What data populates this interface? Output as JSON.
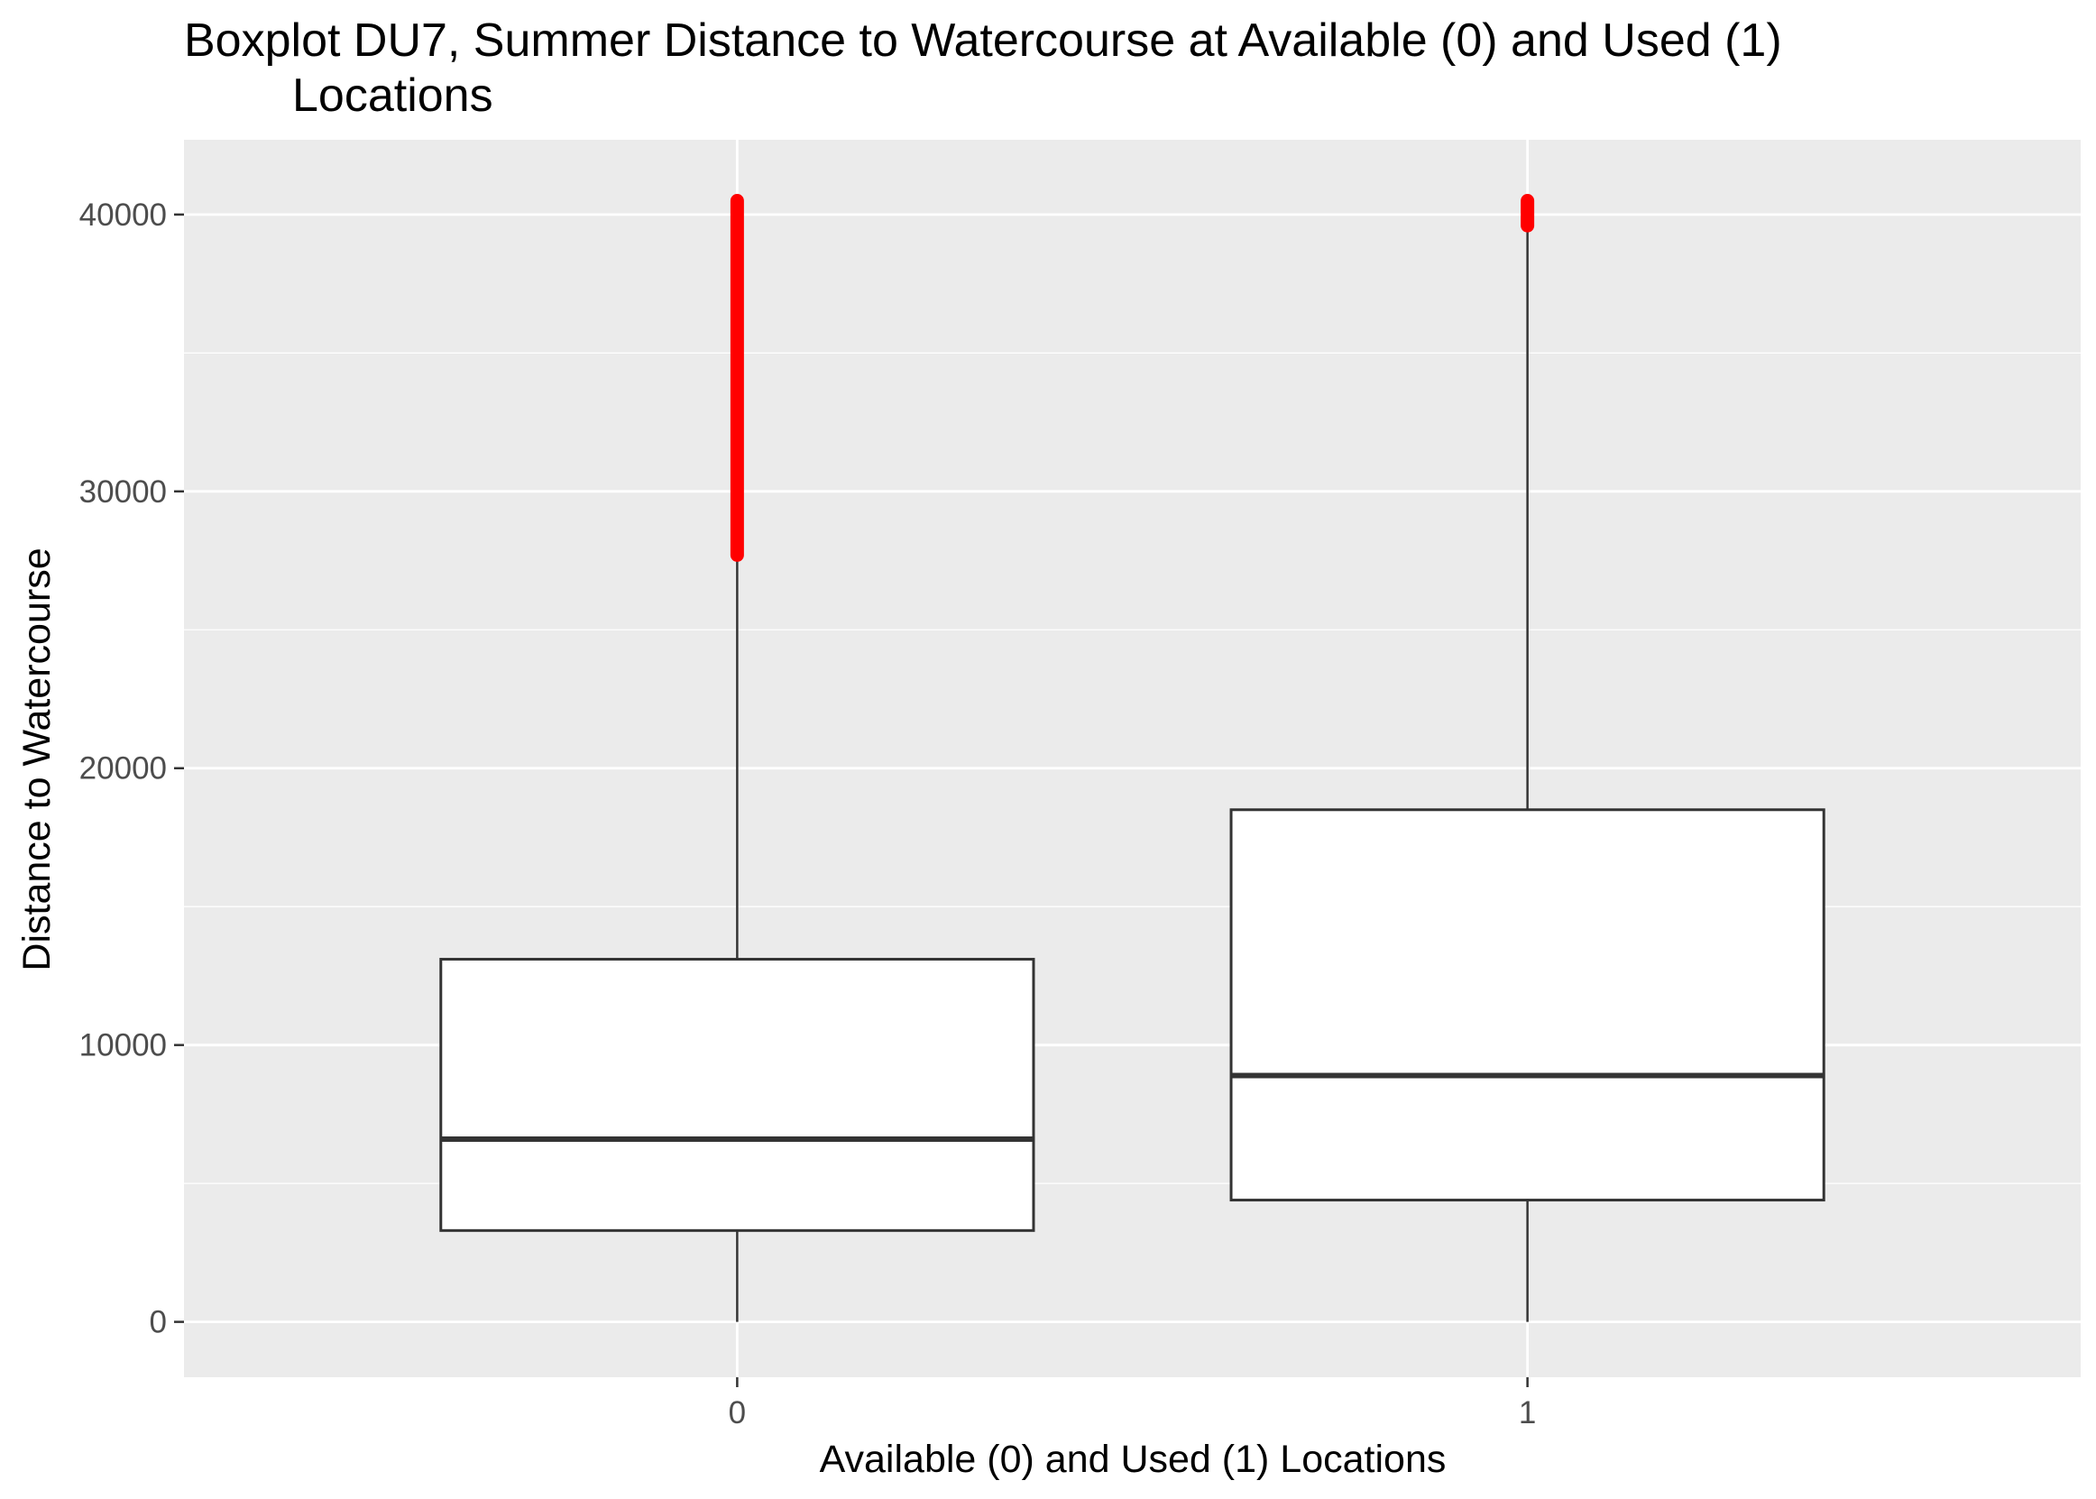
{
  "chart_data": {
    "type": "box",
    "title_line1": "Boxplot DU7, Summer Distance to Watercourse at Available (0) and Used (1)",
    "title_line2": "Locations",
    "xlabel": "Available (0) and Used (1) Locations",
    "ylabel": "Distance to Watercourse",
    "categories": [
      "0",
      "1"
    ],
    "y_ticks": [
      0,
      10000,
      20000,
      30000,
      40000
    ],
    "y_tick_labels": [
      "0",
      "10000",
      "20000",
      "30000",
      "40000"
    ],
    "ylim": [
      -2000,
      42700
    ],
    "grid": true,
    "boxes": [
      {
        "category": "0",
        "whisker_low": 0,
        "q1": 3300,
        "median": 6600,
        "q3": 13100,
        "whisker_high": 27700,
        "outlier_min": 27700,
        "outlier_max": 40500
      },
      {
        "category": "1",
        "whisker_low": 0,
        "q1": 4400,
        "median": 8900,
        "q3": 18500,
        "whisker_high": 39600,
        "outlier_min": 39600,
        "outlier_max": 40500
      }
    ],
    "colors": {
      "panel_background": "#ebebeb",
      "grid": "#ffffff",
      "box_fill": "#ffffff",
      "box_line": "#333333",
      "outlier": "#ff0000"
    }
  }
}
